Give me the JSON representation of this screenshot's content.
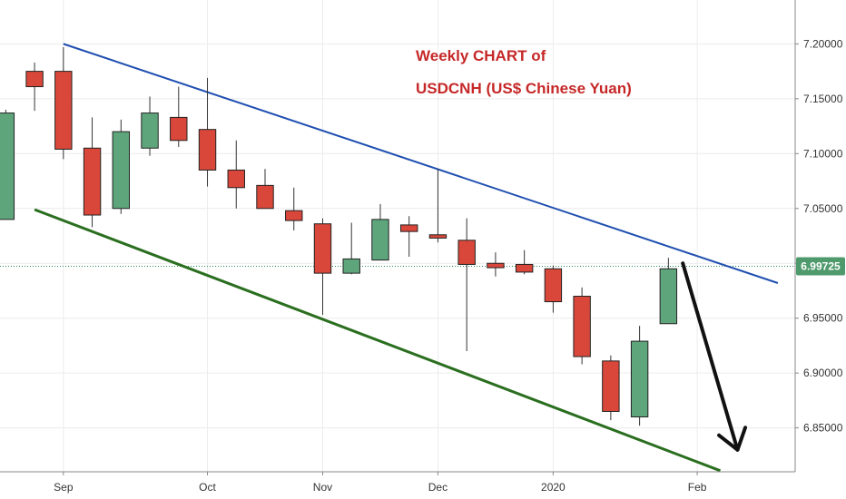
{
  "chart_data": {
    "type": "candlestick",
    "title": [
      "Weekly CHART of",
      "USDCNH (US$ Chinese Yuan)"
    ],
    "xlabel": "",
    "ylabel": "",
    "ylim": [
      6.81,
      7.24
    ],
    "y_ticks": [
      "7.20000",
      "7.15000",
      "7.10000",
      "7.05000",
      "7.00000",
      "6.95000",
      "6.90000",
      "6.85000"
    ],
    "x_ticks": [
      {
        "label": "Sep",
        "week": 2
      },
      {
        "label": "Oct",
        "week": 7
      },
      {
        "label": "Nov",
        "week": 11
      },
      {
        "label": "Dec",
        "week": 15
      },
      {
        "label": "2020",
        "week": 19
      },
      {
        "label": "Feb",
        "week": 24
      }
    ],
    "x_range": [
      -0.2,
      27.4
    ],
    "last_price": "6.99725",
    "last_price_value": 6.99725,
    "candles": [
      {
        "open": 7.04,
        "high": 7.14,
        "low": 7.04,
        "close": 7.137
      },
      {
        "open": 7.175,
        "high": 7.183,
        "low": 7.139,
        "close": 7.161
      },
      {
        "open": 7.175,
        "high": 7.197,
        "low": 7.095,
        "close": 7.104
      },
      {
        "open": 7.105,
        "high": 7.133,
        "low": 7.033,
        "close": 7.044
      },
      {
        "open": 7.05,
        "high": 7.131,
        "low": 7.045,
        "close": 7.12
      },
      {
        "open": 7.105,
        "high": 7.152,
        "low": 7.098,
        "close": 7.137
      },
      {
        "open": 7.133,
        "high": 7.161,
        "low": 7.106,
        "close": 7.112
      },
      {
        "open": 7.122,
        "high": 7.169,
        "low": 7.07,
        "close": 7.085
      },
      {
        "open": 7.085,
        "high": 7.112,
        "low": 7.05,
        "close": 7.069
      },
      {
        "open": 7.071,
        "high": 7.086,
        "low": 7.05,
        "close": 7.05
      },
      {
        "open": 7.048,
        "high": 7.069,
        "low": 7.03,
        "close": 7.039
      },
      {
        "open": 7.036,
        "high": 7.041,
        "low": 6.953,
        "close": 6.991
      },
      {
        "open": 6.991,
        "high": 7.037,
        "low": 6.99,
        "close": 7.004
      },
      {
        "open": 7.003,
        "high": 7.054,
        "low": 7.003,
        "close": 7.04
      },
      {
        "open": 7.035,
        "high": 7.043,
        "low": 7.006,
        "close": 7.029
      },
      {
        "open": 7.026,
        "high": 7.086,
        "low": 7.019,
        "close": 7.023
      },
      {
        "open": 7.021,
        "high": 7.041,
        "low": 6.92,
        "close": 6.999
      },
      {
        "open": 7.0,
        "high": 7.01,
        "low": 6.988,
        "close": 6.996
      },
      {
        "open": 6.999,
        "high": 7.012,
        "low": 6.99,
        "close": 6.992
      },
      {
        "open": 6.995,
        "high": 6.998,
        "low": 6.955,
        "close": 6.965
      },
      {
        "open": 6.97,
        "high": 6.978,
        "low": 6.908,
        "close": 6.915
      },
      {
        "open": 6.911,
        "high": 6.916,
        "low": 6.857,
        "close": 6.865
      },
      {
        "open": 6.86,
        "high": 6.943,
        "low": 6.852,
        "close": 6.929
      },
      {
        "open": 6.945,
        "high": 7.005,
        "low": 6.945,
        "close": 6.995
      }
    ],
    "trendlines": [
      {
        "name": "upper-resistance",
        "color": "#1f4fb0",
        "x": [
          2,
          26.8
        ],
        "y": [
          7.2,
          6.982
        ]
      },
      {
        "name": "lower-support",
        "color": "#2a6e1f",
        "x": [
          1,
          24.8
        ],
        "y": [
          7.049,
          6.811
        ]
      }
    ],
    "arrow": {
      "color": "#111111",
      "from": {
        "x": 23.5,
        "y": 7.0
      },
      "to": {
        "x": 25.4,
        "y": 6.83
      }
    },
    "colors": {
      "up": "#5fa57c",
      "down": "#d9473a",
      "title": "#c62828",
      "grid": "#ececec",
      "price_line": "#2e8b57",
      "price_badge": "#4f9a6c"
    }
  }
}
